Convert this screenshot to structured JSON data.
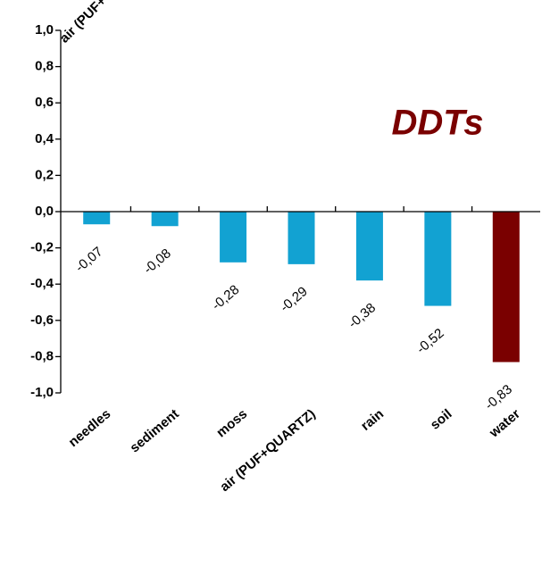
{
  "chart_data": {
    "type": "bar",
    "title": "DDTs",
    "categories": [
      "needles",
      "sediment",
      "moss",
      "air (PUF+QUARTZ)",
      "rain",
      "soil",
      "water"
    ],
    "values": [
      -0.07,
      -0.08,
      -0.28,
      -0.29,
      -0.38,
      -0.52,
      -0.83
    ],
    "value_labels": [
      "-0,07",
      "-0,08",
      "-0,28",
      "-0,29",
      "-0,38",
      "-0,52",
      "-0,83"
    ],
    "colors": [
      "#12a2d2",
      "#12a2d2",
      "#12a2d2",
      "#12a2d2",
      "#12a2d2",
      "#12a2d2",
      "#7a0000"
    ],
    "title_color": "#7a0000",
    "ylim": [
      -1.0,
      1.0
    ],
    "yticks": [
      {
        "value": 1.0,
        "label": "1,0"
      },
      {
        "value": 0.8,
        "label": "0,8"
      },
      {
        "value": 0.6,
        "label": "0,6"
      },
      {
        "value": 0.4,
        "label": "0,4"
      },
      {
        "value": 0.2,
        "label": "0,2"
      },
      {
        "value": 0.0,
        "label": "0,0"
      },
      {
        "value": -0.2,
        "label": "-0,2"
      },
      {
        "value": -0.4,
        "label": "-0,4"
      },
      {
        "value": -0.6,
        "label": "-0,6"
      },
      {
        "value": -0.8,
        "label": "-0,8"
      },
      {
        "value": -1.0,
        "label": "-1,0"
      }
    ],
    "grid": false
  }
}
